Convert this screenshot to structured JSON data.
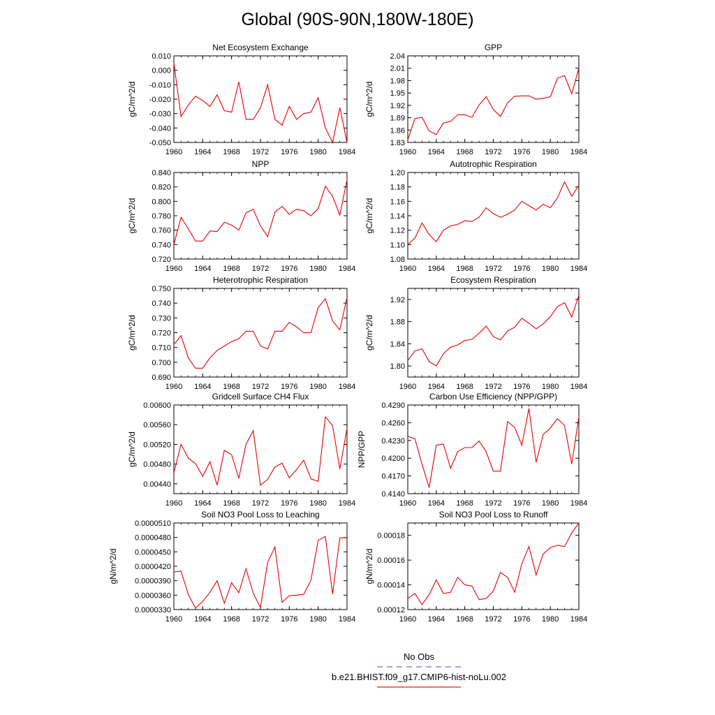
{
  "title": "Global (90S-90N,180W-180E)",
  "legend": [
    {
      "label": "No Obs",
      "color": "#6a6ae0",
      "dash": true
    },
    {
      "label": "b.e21.BHIST.f09_g17.CMIP6-hist-noLu.002",
      "color": "#e41a1c",
      "dash": false
    }
  ],
  "line_color": "#e60000",
  "chart_data": [
    {
      "type": "line",
      "title": "Net Ecosystem Exchange",
      "ylabel": "gC/m^2/d",
      "xlabel": "",
      "xlim": [
        1960,
        1984
      ],
      "ylim": [
        -0.05,
        0.01
      ],
      "xticks": [
        "1960",
        "1964",
        "1968",
        "1972",
        "1976",
        "1980",
        "1984"
      ],
      "yticks": [
        "-0.050",
        "-0.040",
        "-0.030",
        "-0.020",
        "-0.010",
        "0.000",
        "0.010"
      ],
      "x": [
        1960,
        1961,
        1962,
        1963,
        1964,
        1965,
        1966,
        1967,
        1968,
        1969,
        1970,
        1971,
        1972,
        1973,
        1974,
        1975,
        1976,
        1977,
        1978,
        1979,
        1980,
        1981,
        1982,
        1983,
        1984
      ],
      "y": [
        0.005,
        -0.032,
        -0.024,
        -0.018,
        -0.021,
        -0.025,
        -0.017,
        -0.028,
        -0.029,
        -0.008,
        -0.034,
        -0.034,
        -0.026,
        -0.01,
        -0.034,
        -0.038,
        -0.025,
        -0.034,
        -0.03,
        -0.029,
        -0.019,
        -0.04,
        -0.05,
        -0.026,
        -0.05
      ]
    },
    {
      "type": "line",
      "title": "GPP",
      "ylabel": "gC/m^2/d",
      "xlabel": "",
      "xlim": [
        1960,
        1984
      ],
      "ylim": [
        1.83,
        2.04
      ],
      "xticks": [
        "1960",
        "1964",
        "1968",
        "1972",
        "1976",
        "1980",
        "1984"
      ],
      "yticks": [
        "1.83",
        "1.86",
        "1.89",
        "1.92",
        "1.95",
        "1.98",
        "2.01",
        "2.04"
      ],
      "x": [
        1960,
        1961,
        1962,
        1963,
        1964,
        1965,
        1966,
        1967,
        1968,
        1969,
        1970,
        1971,
        1972,
        1973,
        1974,
        1975,
        1976,
        1977,
        1978,
        1979,
        1980,
        1981,
        1982,
        1983,
        1984
      ],
      "y": [
        1.836,
        1.888,
        1.891,
        1.858,
        1.849,
        1.877,
        1.881,
        1.897,
        1.897,
        1.891,
        1.921,
        1.941,
        1.91,
        1.893,
        1.926,
        1.942,
        1.943,
        1.943,
        1.935,
        1.937,
        1.941,
        1.986,
        1.992,
        1.948,
        2.01
      ]
    },
    {
      "type": "line",
      "title": "NPP",
      "ylabel": "gC/m^2/d",
      "xlabel": "",
      "xlim": [
        1960,
        1984
      ],
      "ylim": [
        0.72,
        0.84
      ],
      "xticks": [
        "1960",
        "1964",
        "1968",
        "1972",
        "1976",
        "1980",
        "1984"
      ],
      "yticks": [
        "0.720",
        "0.740",
        "0.760",
        "0.780",
        "0.800",
        "0.820",
        "0.840"
      ],
      "x": [
        1960,
        1961,
        1962,
        1963,
        1964,
        1965,
        1966,
        1967,
        1968,
        1969,
        1970,
        1971,
        1972,
        1973,
        1974,
        1975,
        1976,
        1977,
        1978,
        1979,
        1980,
        1981,
        1982,
        1983,
        1984
      ],
      "y": [
        0.74,
        0.778,
        0.762,
        0.745,
        0.745,
        0.759,
        0.758,
        0.771,
        0.767,
        0.76,
        0.784,
        0.789,
        0.766,
        0.751,
        0.785,
        0.793,
        0.782,
        0.789,
        0.787,
        0.78,
        0.79,
        0.821,
        0.807,
        0.781,
        0.83
      ]
    },
    {
      "type": "line",
      "title": "Autotrophic Respiration",
      "ylabel": "gC/m^2/d",
      "xlabel": "",
      "xlim": [
        1960,
        1984
      ],
      "ylim": [
        1.08,
        1.2
      ],
      "xticks": [
        "1960",
        "1964",
        "1968",
        "1972",
        "1976",
        "1980",
        "1984"
      ],
      "yticks": [
        "1.08",
        "1.10",
        "1.12",
        "1.14",
        "1.16",
        "1.18",
        "1.20"
      ],
      "x": [
        1960,
        1961,
        1962,
        1963,
        1964,
        1965,
        1966,
        1967,
        1968,
        1969,
        1970,
        1971,
        1972,
        1973,
        1974,
        1975,
        1976,
        1977,
        1978,
        1979,
        1980,
        1981,
        1982,
        1983,
        1984
      ],
      "y": [
        1.1,
        1.109,
        1.13,
        1.114,
        1.104,
        1.12,
        1.126,
        1.128,
        1.133,
        1.132,
        1.138,
        1.151,
        1.143,
        1.138,
        1.142,
        1.148,
        1.16,
        1.154,
        1.148,
        1.156,
        1.151,
        1.165,
        1.187,
        1.167,
        1.182
      ]
    },
    {
      "type": "line",
      "title": "Heterotrophic Respiration",
      "ylabel": "gC/m^2/d",
      "xlabel": "",
      "xlim": [
        1960,
        1984
      ],
      "ylim": [
        0.69,
        0.75
      ],
      "xticks": [
        "1960",
        "1964",
        "1968",
        "1972",
        "1976",
        "1980",
        "1984"
      ],
      "yticks": [
        "0.690",
        "0.700",
        "0.710",
        "0.720",
        "0.730",
        "0.740",
        "0.750"
      ],
      "x": [
        1960,
        1961,
        1962,
        1963,
        1964,
        1965,
        1966,
        1967,
        1968,
        1969,
        1970,
        1971,
        1972,
        1973,
        1974,
        1975,
        1976,
        1977,
        1978,
        1979,
        1980,
        1981,
        1982,
        1983,
        1984
      ],
      "y": [
        0.712,
        0.718,
        0.703,
        0.696,
        0.696,
        0.703,
        0.708,
        0.711,
        0.714,
        0.716,
        0.721,
        0.721,
        0.711,
        0.709,
        0.721,
        0.721,
        0.727,
        0.724,
        0.72,
        0.72,
        0.737,
        0.743,
        0.728,
        0.722,
        0.744
      ]
    },
    {
      "type": "line",
      "title": "Ecosystem Respiration",
      "ylabel": "gC/m^2/d",
      "xlabel": "",
      "xlim": [
        1960,
        1984
      ],
      "ylim": [
        1.78,
        1.94
      ],
      "xticks": [
        "1960",
        "1964",
        "1968",
        "1972",
        "1976",
        "1980",
        "1984"
      ],
      "yticks": [
        "1.80",
        "1.84",
        "1.88",
        "1.92"
      ],
      "ytickvals": [
        1.8,
        1.84,
        1.88,
        1.92
      ],
      "x": [
        1960,
        1961,
        1962,
        1963,
        1964,
        1965,
        1966,
        1967,
        1968,
        1969,
        1970,
        1971,
        1972,
        1973,
        1974,
        1975,
        1976,
        1977,
        1978,
        1979,
        1980,
        1981,
        1982,
        1983,
        1984
      ],
      "y": [
        1.81,
        1.827,
        1.831,
        1.808,
        1.8,
        1.822,
        1.834,
        1.838,
        1.846,
        1.848,
        1.859,
        1.872,
        1.853,
        1.847,
        1.863,
        1.87,
        1.886,
        1.877,
        1.867,
        1.876,
        1.889,
        1.907,
        1.914,
        1.888,
        1.928
      ]
    },
    {
      "type": "line",
      "title": "Gridcell Surface CH4 Flux",
      "ylabel": "gC/m^2/d",
      "xlabel": "",
      "xlim": [
        1960,
        1984
      ],
      "ylim": [
        0.0042,
        0.006
      ],
      "xticks": [
        "1960",
        "1964",
        "1968",
        "1972",
        "1976",
        "1980",
        "1984"
      ],
      "yticks": [
        "0.00440",
        "0.00480",
        "0.00520",
        "0.00560",
        "0.00600"
      ],
      "ytickvals": [
        0.0044,
        0.0048,
        0.0052,
        0.0056,
        0.006
      ],
      "x": [
        1960,
        1961,
        1962,
        1963,
        1964,
        1965,
        1966,
        1967,
        1968,
        1969,
        1970,
        1971,
        1972,
        1973,
        1974,
        1975,
        1976,
        1977,
        1978,
        1979,
        1980,
        1981,
        1982,
        1983,
        1984
      ],
      "y": [
        0.00463,
        0.0052,
        0.00492,
        0.00481,
        0.00455,
        0.00485,
        0.00437,
        0.00508,
        0.00499,
        0.00451,
        0.0052,
        0.00548,
        0.00437,
        0.00449,
        0.00474,
        0.00482,
        0.00452,
        0.00469,
        0.00488,
        0.0045,
        0.00445,
        0.00576,
        0.00558,
        0.0047,
        0.00553
      ]
    },
    {
      "type": "line",
      "title": "Carbon Use Efficiency (NPP/GPP)",
      "ylabel": "NPP/GPP",
      "xlabel": "",
      "xlim": [
        1960,
        1984
      ],
      "ylim": [
        0.414,
        0.429
      ],
      "xticks": [
        "1960",
        "1964",
        "1968",
        "1972",
        "1976",
        "1980",
        "1984"
      ],
      "yticks": [
        "0.4140",
        "0.4170",
        "0.4200",
        "0.4230",
        "0.4260",
        "0.4290"
      ],
      "x": [
        1960,
        1961,
        1962,
        1963,
        1964,
        1965,
        1966,
        1967,
        1968,
        1969,
        1970,
        1971,
        1972,
        1973,
        1974,
        1975,
        1976,
        1977,
        1978,
        1979,
        1980,
        1981,
        1982,
        1983,
        1984
      ],
      "y": [
        0.4237,
        0.4233,
        0.419,
        0.415,
        0.4222,
        0.4224,
        0.4183,
        0.4211,
        0.4218,
        0.4218,
        0.4229,
        0.4211,
        0.4178,
        0.4178,
        0.4262,
        0.4252,
        0.4222,
        0.4284,
        0.4193,
        0.424,
        0.4251,
        0.4267,
        0.4255,
        0.419,
        0.427
      ]
    },
    {
      "type": "line",
      "title": "Soil NO3 Pool Loss to Leaching",
      "ylabel": "gN/m^2/d",
      "xlabel": "",
      "xlim": [
        1960,
        1984
      ],
      "ylim": [
        3.3e-05,
        5.1e-05
      ],
      "xticks": [
        "1960",
        "1964",
        "1968",
        "1972",
        "1976",
        "1980",
        "1984"
      ],
      "yticks": [
        "0.0000330",
        "0.0000360",
        "0.0000390",
        "0.0000420",
        "0.0000450",
        "0.0000480",
        "0.0000510"
      ],
      "x": [
        1960,
        1961,
        1962,
        1963,
        1964,
        1965,
        1966,
        1967,
        1968,
        1969,
        1970,
        1971,
        1972,
        1973,
        1974,
        1975,
        1976,
        1977,
        1978,
        1979,
        1980,
        1981,
        1982,
        1983,
        1984
      ],
      "y": [
        4.08e-05,
        4.1e-05,
        3.61e-05,
        3.33e-05,
        3.47e-05,
        3.66e-05,
        3.9e-05,
        3.43e-05,
        3.86e-05,
        3.65e-05,
        4.15e-05,
        3.64e-05,
        3.34e-05,
        4.28e-05,
        4.6e-05,
        3.45e-05,
        3.59e-05,
        3.6e-05,
        3.62e-05,
        3.91e-05,
        4.74e-05,
        4.82e-05,
        3.62e-05,
        4.79e-05,
        4.8e-05
      ]
    },
    {
      "type": "line",
      "title": "Soil NO3 Pool Loss to Runoff",
      "ylabel": "gN/m^2/d",
      "xlabel": "",
      "xlim": [
        1960,
        1984
      ],
      "ylim": [
        0.00012,
        0.00019
      ],
      "xticks": [
        "1960",
        "1964",
        "1968",
        "1972",
        "1976",
        "1980",
        "1984"
      ],
      "yticks": [
        "0.00012",
        "0.00014",
        "0.00016",
        "0.00018"
      ],
      "ytickvals": [
        0.00012,
        0.00014,
        0.00016,
        0.00018
      ],
      "x": [
        1960,
        1961,
        1962,
        1963,
        1964,
        1965,
        1966,
        1967,
        1968,
        1969,
        1970,
        1971,
        1972,
        1973,
        1974,
        1975,
        1976,
        1977,
        1978,
        1979,
        1980,
        1981,
        1982,
        1983,
        1984
      ],
      "y": [
        0.000129,
        0.000133,
        0.000124,
        0.000132,
        0.000144,
        0.000133,
        0.000134,
        0.000146,
        0.00014,
        0.000139,
        0.000128,
        0.000129,
        0.000135,
        0.00015,
        0.000146,
        0.000134,
        0.000157,
        0.000171,
        0.000148,
        0.000165,
        0.00017,
        0.000172,
        0.000171,
        0.000182,
        0.00019
      ]
    }
  ]
}
